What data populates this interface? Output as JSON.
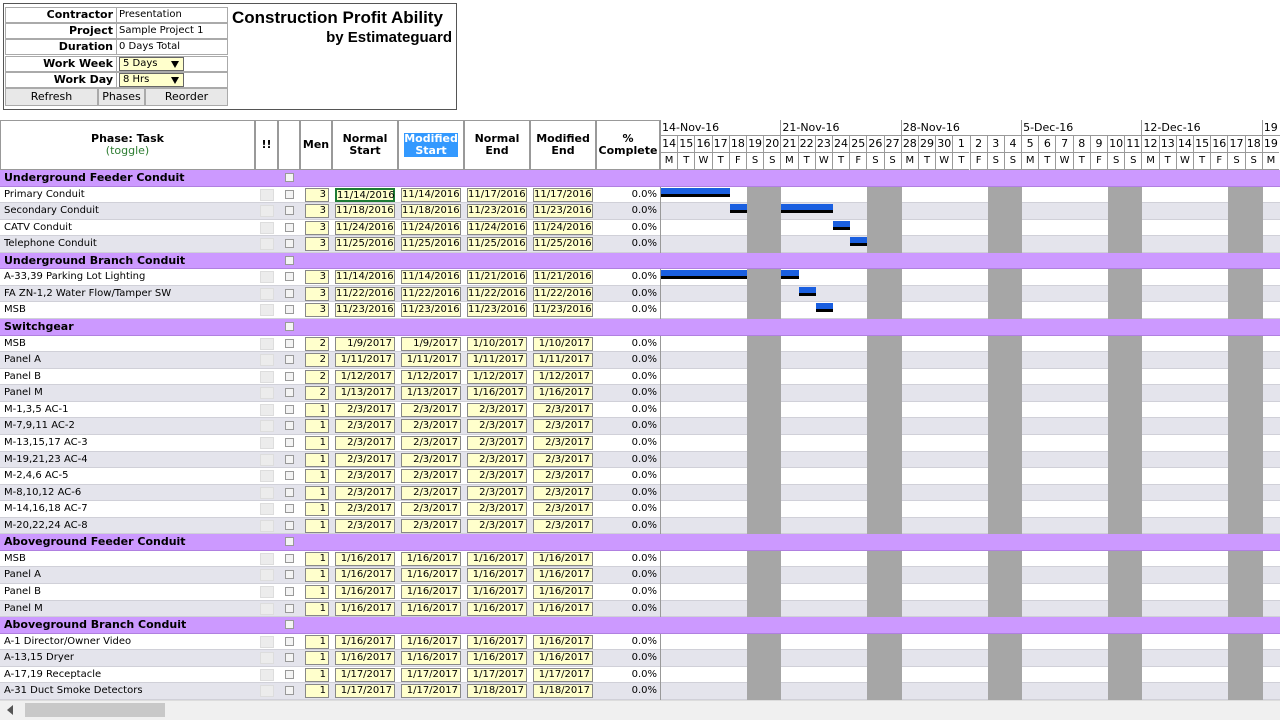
{
  "info": [
    {
      "label": "Contractor",
      "value": "Presentation"
    },
    {
      "label": "Project",
      "value": "Sample Project 1"
    },
    {
      "label": "Duration",
      "value": "0 Days Total"
    },
    {
      "label": "Work Week",
      "value": "5 Days"
    },
    {
      "label": "Work Day",
      "value": "8 Hrs"
    }
  ],
  "buttons": [
    "Refresh",
    "Phases",
    "Reorder"
  ],
  "header": {
    "title": "Construction Profit Ability",
    "subtitle": "by Estimateguard"
  },
  "columns": [
    "Phase: Task",
    "!!",
    "Men",
    "Normal Start",
    "Modified Start",
    "Normal End",
    "Modified End",
    "% Complete"
  ],
  "toggle": "(toggle)",
  "gantt": {
    "weeks": [
      "14-Nov-16",
      "21-Nov-16",
      "28-Nov-16",
      "5-Dec-16",
      "12-Dec-16",
      "19"
    ],
    "days": [
      14,
      15,
      16,
      17,
      18,
      19,
      20,
      21,
      22,
      23,
      24,
      25,
      26,
      27,
      28,
      29,
      30,
      1,
      2,
      3,
      4,
      5,
      6,
      7,
      8,
      9,
      10,
      11,
      12,
      13,
      14,
      15,
      16,
      17,
      18,
      19
    ],
    "weekdays": [
      "M",
      "T",
      "W",
      "T",
      "F",
      "S",
      "S",
      "M",
      "T",
      "W",
      "T",
      "F",
      "S",
      "S",
      "M",
      "T",
      "W",
      "T",
      "F",
      "S",
      "S",
      "M",
      "T",
      "W",
      "T",
      "F",
      "S",
      "S",
      "M",
      "T",
      "W",
      "T",
      "F",
      "S",
      "S",
      "M"
    ]
  },
  "phases": [
    {
      "name": "Underground Feeder Conduit",
      "tasks": [
        {
          "name": "Primary Conduit",
          "men": 3,
          "normal_start": "11/14/2016",
          "modified_start": "11/14/2016",
          "normal_end": "11/17/2016",
          "modified_end": "11/17/2016",
          "complete": "0.0%"
        },
        {
          "name": "Secondary Conduit",
          "men": 3,
          "normal_start": "11/18/2016",
          "modified_start": "11/18/2016",
          "normal_end": "11/23/2016",
          "modified_end": "11/23/2016",
          "complete": "0.0%"
        },
        {
          "name": "CATV Conduit",
          "men": 3,
          "normal_start": "11/24/2016",
          "modified_start": "11/24/2016",
          "normal_end": "11/24/2016",
          "modified_end": "11/24/2016",
          "complete": "0.0%"
        },
        {
          "name": "Telephone Conduit",
          "men": 3,
          "normal_start": "11/25/2016",
          "modified_start": "11/25/2016",
          "normal_end": "11/25/2016",
          "modified_end": "11/25/2016",
          "complete": "0.0%"
        }
      ]
    },
    {
      "name": "Underground Branch Conduit",
      "tasks": [
        {
          "name": "A-33,39 Parking Lot Lighting",
          "men": 3,
          "normal_start": "11/14/2016",
          "modified_start": "11/14/2016",
          "normal_end": "11/21/2016",
          "modified_end": "11/21/2016",
          "complete": "0.0%"
        },
        {
          "name": "FA ZN-1,2 Water Flow/Tamper SW",
          "men": 3,
          "normal_start": "11/22/2016",
          "modified_start": "11/22/2016",
          "normal_end": "11/22/2016",
          "modified_end": "11/22/2016",
          "complete": "0.0%"
        },
        {
          "name": "MSB",
          "men": 3,
          "normal_start": "11/23/2016",
          "modified_start": "11/23/2016",
          "normal_end": "11/23/2016",
          "modified_end": "11/23/2016",
          "complete": "0.0%"
        }
      ]
    },
    {
      "name": "Switchgear",
      "tasks": [
        {
          "name": "MSB",
          "men": 2,
          "normal_start": "1/9/2017",
          "modified_start": "1/9/2017",
          "normal_end": "1/10/2017",
          "modified_end": "1/10/2017",
          "complete": "0.0%"
        },
        {
          "name": "Panel A",
          "men": 2,
          "normal_start": "1/11/2017",
          "modified_start": "1/11/2017",
          "normal_end": "1/11/2017",
          "modified_end": "1/11/2017",
          "complete": "0.0%"
        },
        {
          "name": "Panel B",
          "men": 2,
          "normal_start": "1/12/2017",
          "modified_start": "1/12/2017",
          "normal_end": "1/12/2017",
          "modified_end": "1/12/2017",
          "complete": "0.0%"
        },
        {
          "name": "Panel M",
          "men": 2,
          "normal_start": "1/13/2017",
          "modified_start": "1/13/2017",
          "normal_end": "1/16/2017",
          "modified_end": "1/16/2017",
          "complete": "0.0%"
        },
        {
          "name": "M-1,3,5 AC-1",
          "men": 1,
          "normal_start": "2/3/2017",
          "modified_start": "2/3/2017",
          "normal_end": "2/3/2017",
          "modified_end": "2/3/2017",
          "complete": "0.0%"
        },
        {
          "name": "M-7,9,11 AC-2",
          "men": 1,
          "normal_start": "2/3/2017",
          "modified_start": "2/3/2017",
          "normal_end": "2/3/2017",
          "modified_end": "2/3/2017",
          "complete": "0.0%"
        },
        {
          "name": "M-13,15,17 AC-3",
          "men": 1,
          "normal_start": "2/3/2017",
          "modified_start": "2/3/2017",
          "normal_end": "2/3/2017",
          "modified_end": "2/3/2017",
          "complete": "0.0%"
        },
        {
          "name": "M-19,21,23 AC-4",
          "men": 1,
          "normal_start": "2/3/2017",
          "modified_start": "2/3/2017",
          "normal_end": "2/3/2017",
          "modified_end": "2/3/2017",
          "complete": "0.0%"
        },
        {
          "name": "M-2,4,6 AC-5",
          "men": 1,
          "normal_start": "2/3/2017",
          "modified_start": "2/3/2017",
          "normal_end": "2/3/2017",
          "modified_end": "2/3/2017",
          "complete": "0.0%"
        },
        {
          "name": "M-8,10,12 AC-6",
          "men": 1,
          "normal_start": "2/3/2017",
          "modified_start": "2/3/2017",
          "normal_end": "2/3/2017",
          "modified_end": "2/3/2017",
          "complete": "0.0%"
        },
        {
          "name": "M-14,16,18 AC-7",
          "men": 1,
          "normal_start": "2/3/2017",
          "modified_start": "2/3/2017",
          "normal_end": "2/3/2017",
          "modified_end": "2/3/2017",
          "complete": "0.0%"
        },
        {
          "name": "M-20,22,24 AC-8",
          "men": 1,
          "normal_start": "2/3/2017",
          "modified_start": "2/3/2017",
          "normal_end": "2/3/2017",
          "modified_end": "2/3/2017",
          "complete": "0.0%"
        }
      ]
    },
    {
      "name": "Aboveground Feeder Conduit",
      "tasks": [
        {
          "name": "MSB",
          "men": 1,
          "normal_start": "1/16/2017",
          "modified_start": "1/16/2017",
          "normal_end": "1/16/2017",
          "modified_end": "1/16/2017",
          "complete": "0.0%"
        },
        {
          "name": "Panel A",
          "men": 1,
          "normal_start": "1/16/2017",
          "modified_start": "1/16/2017",
          "normal_end": "1/16/2017",
          "modified_end": "1/16/2017",
          "complete": "0.0%"
        },
        {
          "name": "Panel B",
          "men": 1,
          "normal_start": "1/16/2017",
          "modified_start": "1/16/2017",
          "normal_end": "1/16/2017",
          "modified_end": "1/16/2017",
          "complete": "0.0%"
        },
        {
          "name": "Panel M",
          "men": 1,
          "normal_start": "1/16/2017",
          "modified_start": "1/16/2017",
          "normal_end": "1/16/2017",
          "modified_end": "1/16/2017",
          "complete": "0.0%"
        }
      ]
    },
    {
      "name": "Aboveground Branch Conduit",
      "tasks": [
        {
          "name": "A-1 Director/Owner Video",
          "men": 1,
          "normal_start": "1/16/2017",
          "modified_start": "1/16/2017",
          "normal_end": "1/16/2017",
          "modified_end": "1/16/2017",
          "complete": "0.0%"
        },
        {
          "name": "A-13,15 Dryer",
          "men": 1,
          "normal_start": "1/16/2017",
          "modified_start": "1/16/2017",
          "normal_end": "1/16/2017",
          "modified_end": "1/16/2017",
          "complete": "0.0%"
        },
        {
          "name": "A-17,19 Receptacle",
          "men": 1,
          "normal_start": "1/17/2017",
          "modified_start": "1/17/2017",
          "normal_end": "1/17/2017",
          "modified_end": "1/17/2017",
          "complete": "0.0%"
        },
        {
          "name": "A-31 Duct Smoke Detectors",
          "men": 1,
          "normal_start": "1/17/2017",
          "modified_start": "1/17/2017",
          "normal_end": "1/18/2017",
          "modified_end": "1/18/2017",
          "complete": "0.0%"
        }
      ]
    }
  ]
}
